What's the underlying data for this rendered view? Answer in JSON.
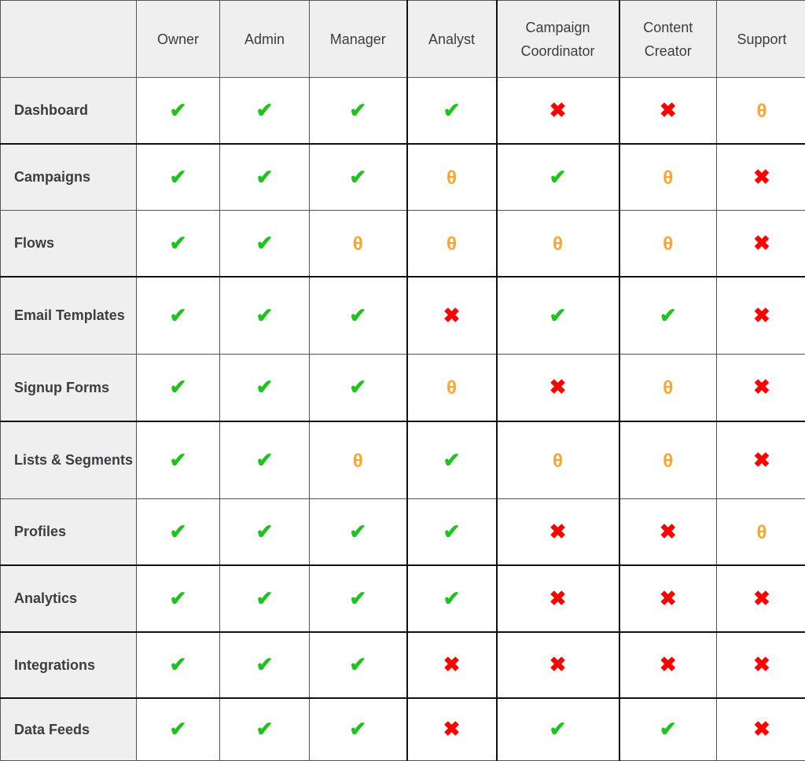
{
  "symbols": {
    "yes": {
      "glyph": "✔",
      "color": "#1ec31e"
    },
    "no": {
      "glyph": "✖",
      "color": "#ff0000"
    },
    "partial": {
      "glyph": "θ",
      "color": "#f8a535"
    }
  },
  "columns": [
    "Owner",
    "Admin",
    "Manager",
    "Analyst",
    "Campaign Coordinator",
    "Content Creator",
    "Support"
  ],
  "rows": [
    {
      "label": "Dashboard",
      "cells": [
        "yes",
        "yes",
        "yes",
        "yes",
        "no",
        "no",
        "partial"
      ]
    },
    {
      "label": "Campaigns",
      "cells": [
        "yes",
        "yes",
        "yes",
        "partial",
        "yes",
        "partial",
        "no"
      ]
    },
    {
      "label": "Flows",
      "cells": [
        "yes",
        "yes",
        "partial",
        "partial",
        "partial",
        "partial",
        "no"
      ]
    },
    {
      "label": "Email Templates",
      "cells": [
        "yes",
        "yes",
        "yes",
        "no",
        "yes",
        "yes",
        "no"
      ]
    },
    {
      "label": "Signup Forms",
      "cells": [
        "yes",
        "yes",
        "yes",
        "partial",
        "no",
        "partial",
        "no"
      ]
    },
    {
      "label": "Lists & Segments",
      "cells": [
        "yes",
        "yes",
        "partial",
        "yes",
        "partial",
        "partial",
        "no"
      ]
    },
    {
      "label": "Profiles",
      "cells": [
        "yes",
        "yes",
        "yes",
        "yes",
        "no",
        "no",
        "partial"
      ]
    },
    {
      "label": "Analytics",
      "cells": [
        "yes",
        "yes",
        "yes",
        "yes",
        "no",
        "no",
        "no"
      ]
    },
    {
      "label": "Integrations",
      "cells": [
        "yes",
        "yes",
        "yes",
        "no",
        "no",
        "no",
        "no"
      ]
    },
    {
      "label": "Data Feeds",
      "cells": [
        "yes",
        "yes",
        "yes",
        "no",
        "yes",
        "yes",
        "no"
      ]
    }
  ]
}
